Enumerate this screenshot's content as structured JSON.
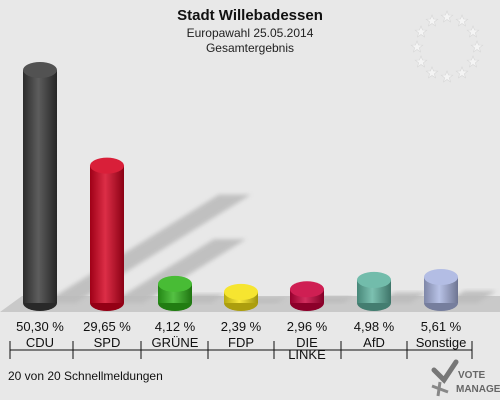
{
  "chart_data": {
    "type": "bar",
    "title": "Stadt Willebadessen",
    "subtitle_line1": "Europawahl 25.05.2014",
    "subtitle_line2": "Gesamtergebnis",
    "categories": [
      "CDU",
      "SPD",
      "GRÜNE",
      "FDP",
      "DIE LINKE",
      "AfD",
      "Sonstige"
    ],
    "values": [
      50.3,
      29.65,
      4.12,
      2.39,
      2.96,
      4.98,
      5.61
    ],
    "value_labels": [
      "50,30 %",
      "29,65 %",
      "4,12 %",
      "2,39 %",
      "2,96 %",
      "4,98 %",
      "5,61 %"
    ],
    "colors": [
      "#3a3a3a",
      "#d4001e",
      "#2fb31a",
      "#f5e214",
      "#c8003c",
      "#5fb3a0",
      "#a9b4e0"
    ],
    "ylim": [
      0,
      55
    ],
    "legend": "none",
    "grid": false
  },
  "footer": {
    "status": "20 von 20 Schnellmeldungen",
    "watermark_line1": "VOTE",
    "watermark_line2": "MANAGER"
  },
  "decor": {
    "flag_icon": "eu-stars-icon"
  }
}
